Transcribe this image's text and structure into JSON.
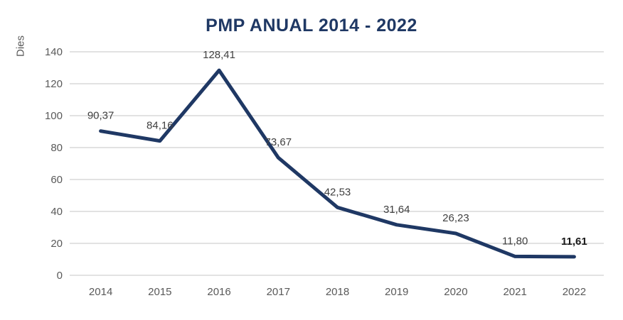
{
  "chart_data": {
    "type": "line",
    "title": "PMP ANUAL 2014 - 2022",
    "ylabel": "Dies",
    "xlabel": "",
    "categories": [
      "2014",
      "2015",
      "2016",
      "2017",
      "2018",
      "2019",
      "2020",
      "2021",
      "2022"
    ],
    "values": [
      90.37,
      84.16,
      128.41,
      73.67,
      42.53,
      31.64,
      26.23,
      11.8,
      11.61
    ],
    "labels": [
      "90,37",
      "84,16",
      "128,41",
      "73,67",
      "42,53",
      "31,64",
      "26,23",
      "11,80",
      "11,61"
    ],
    "bold_label_index": 8,
    "ylim": [
      0,
      140
    ],
    "ytick_step": 20,
    "yticks": [
      "0",
      "20",
      "40",
      "60",
      "80",
      "100",
      "120",
      "140"
    ],
    "grid": true,
    "legend": "none",
    "colors": {
      "line": "#1F3864",
      "title": "#1F3864",
      "grid": "#D9D9D9",
      "tick_label": "#595959",
      "data_label": "#404040",
      "bold_data_label": "#1a1a1a"
    }
  }
}
